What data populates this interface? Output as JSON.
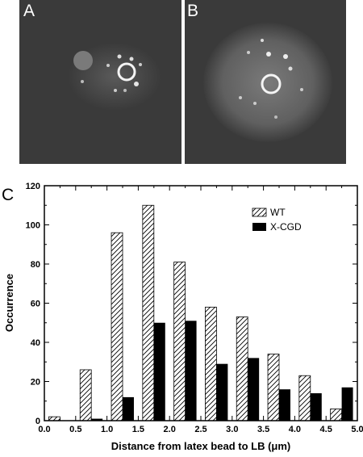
{
  "panels": {
    "a_label": "A",
    "b_label": "B",
    "c_label": "C"
  },
  "colors": {
    "micrograph_background": "#3a3a3a",
    "bar_wt_fill": "hatched",
    "bar_xcgd_fill": "#000000"
  },
  "chart_data": {
    "type": "bar",
    "title": "",
    "xlabel": "Distance from latex bead to LB (μm)",
    "ylabel": "Occurrence",
    "xlim": [
      0.0,
      5.0
    ],
    "ylim": [
      0,
      120
    ],
    "xticks": [
      "0.0",
      "0.5",
      "1.0",
      "1.5",
      "2.0",
      "2.5",
      "3.0",
      "3.5",
      "4.0",
      "4.5",
      "5.0"
    ],
    "yticks": [
      "0",
      "20",
      "40",
      "60",
      "80",
      "100",
      "120"
    ],
    "bin_centers": [
      0.25,
      0.75,
      1.25,
      1.75,
      2.25,
      2.75,
      3.25,
      3.75,
      4.25,
      4.75
    ],
    "series": [
      {
        "name": "WT",
        "values": [
          2,
          26,
          96,
          110,
          81,
          58,
          53,
          34,
          23,
          6
        ]
      },
      {
        "name": "X-CGD",
        "values": [
          0,
          1,
          12,
          50,
          51,
          29,
          32,
          16,
          14,
          17
        ]
      }
    ],
    "legend_position": "top-right",
    "grid": false
  }
}
